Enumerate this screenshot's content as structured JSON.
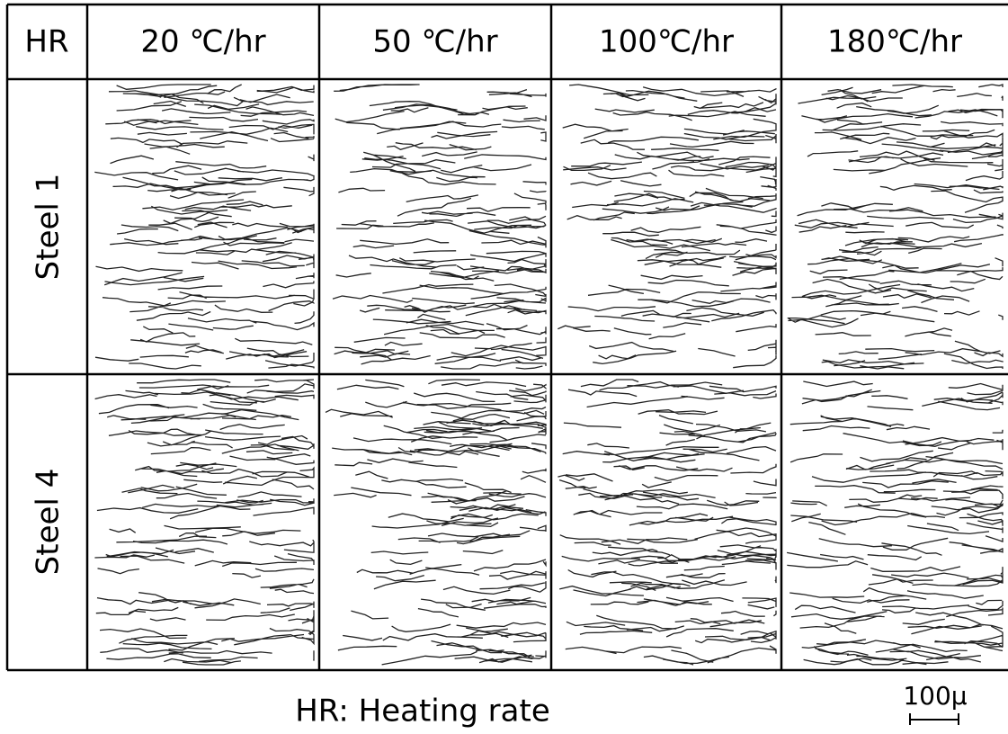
{
  "header": {
    "corner": "HR",
    "columns": [
      "20 ℃/hr",
      "50 ℃/hr",
      "100℃/hr",
      "180℃/hr"
    ]
  },
  "rows": [
    {
      "label": "Steel 1"
    },
    {
      "label": "Steel 4"
    }
  ],
  "caption": "HR: Heating rate",
  "scale_bar": "100μ"
}
